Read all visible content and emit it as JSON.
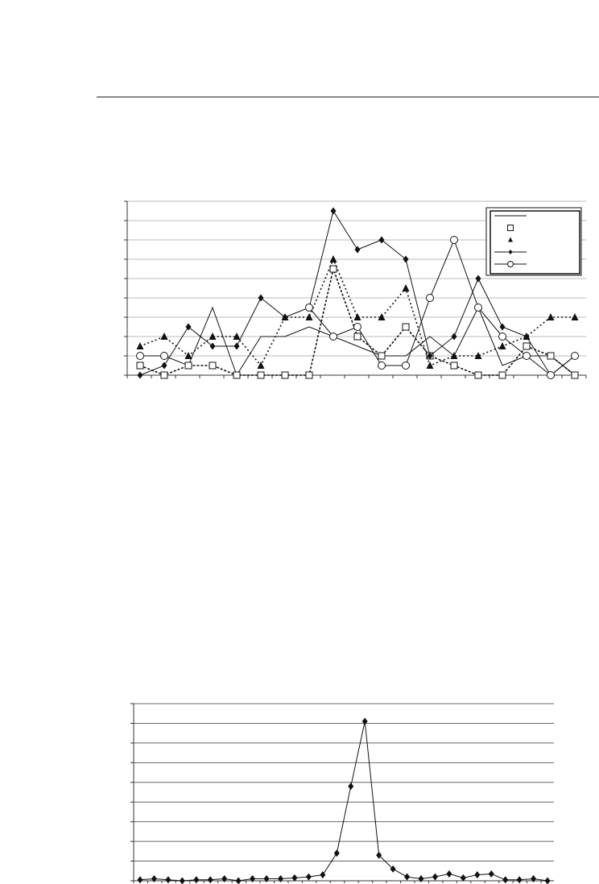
{
  "chart_data": [
    {
      "type": "line",
      "title": "",
      "xlabel": "",
      "ylabel": "",
      "ylim": [
        0,
        9
      ],
      "grid": true,
      "legend_position": "top-right",
      "x": [
        1,
        2,
        3,
        4,
        5,
        6,
        7,
        8,
        9,
        10,
        11,
        12,
        13,
        14,
        15,
        16,
        17,
        18,
        19
      ],
      "series": [
        {
          "marker": "none",
          "line": "solid",
          "values": [
            1,
            1,
            0.5,
            3.5,
            0,
            2,
            2,
            2.5,
            2,
            1.5,
            1,
            1,
            2,
            1,
            3.5,
            0.5,
            1,
            1,
            0
          ]
        },
        {
          "marker": "square-open",
          "line": "dashed",
          "values": [
            0.5,
            0,
            0.5,
            0.5,
            0,
            0,
            0,
            0,
            5.5,
            2,
            1,
            2.5,
            1,
            0.5,
            0,
            0,
            1.5,
            1,
            0
          ]
        },
        {
          "marker": "triangle-filled",
          "line": "dotted",
          "values": [
            1.5,
            2,
            1,
            2,
            2,
            0.5,
            3,
            3,
            6,
            3,
            3,
            4.5,
            0.5,
            1,
            1,
            1.5,
            2,
            3,
            3
          ]
        },
        {
          "marker": "diamond-filled",
          "line": "solid",
          "values": [
            0,
            0.5,
            2.5,
            1.5,
            1.5,
            4,
            3,
            3.5,
            8.5,
            6.5,
            7,
            6,
            1,
            2,
            5,
            2.5,
            2,
            0,
            1
          ]
        },
        {
          "marker": "circle-open",
          "line": "solid",
          "values": [
            1,
            1,
            null,
            null,
            null,
            null,
            null,
            3.5,
            2,
            2.5,
            0.5,
            0.5,
            4,
            7,
            3.5,
            2,
            1,
            0,
            1
          ]
        }
      ]
    },
    {
      "type": "line",
      "title": "",
      "xlabel": "",
      "ylabel": "",
      "ylim": [
        0,
        9
      ],
      "grid": true,
      "x": [
        1,
        2,
        3,
        4,
        5,
        6,
        7,
        8,
        9,
        10,
        11,
        12,
        13,
        14,
        15,
        16,
        17,
        18,
        19,
        20,
        21,
        22,
        23,
        24,
        25,
        26,
        27,
        28,
        29,
        30
      ],
      "series": [
        {
          "marker": "diamond-filled",
          "line": "solid",
          "values": [
            0.05,
            0.1,
            0.05,
            0,
            0.05,
            0.05,
            0.1,
            0,
            0.1,
            0.1,
            0.1,
            0.15,
            0.2,
            0.3,
            1.4,
            4.8,
            8.1,
            1.3,
            0.6,
            0.2,
            0.1,
            0.2,
            0.35,
            0.15,
            0.3,
            0.35,
            0.05,
            0.05,
            0.1,
            0
          ]
        }
      ]
    }
  ]
}
